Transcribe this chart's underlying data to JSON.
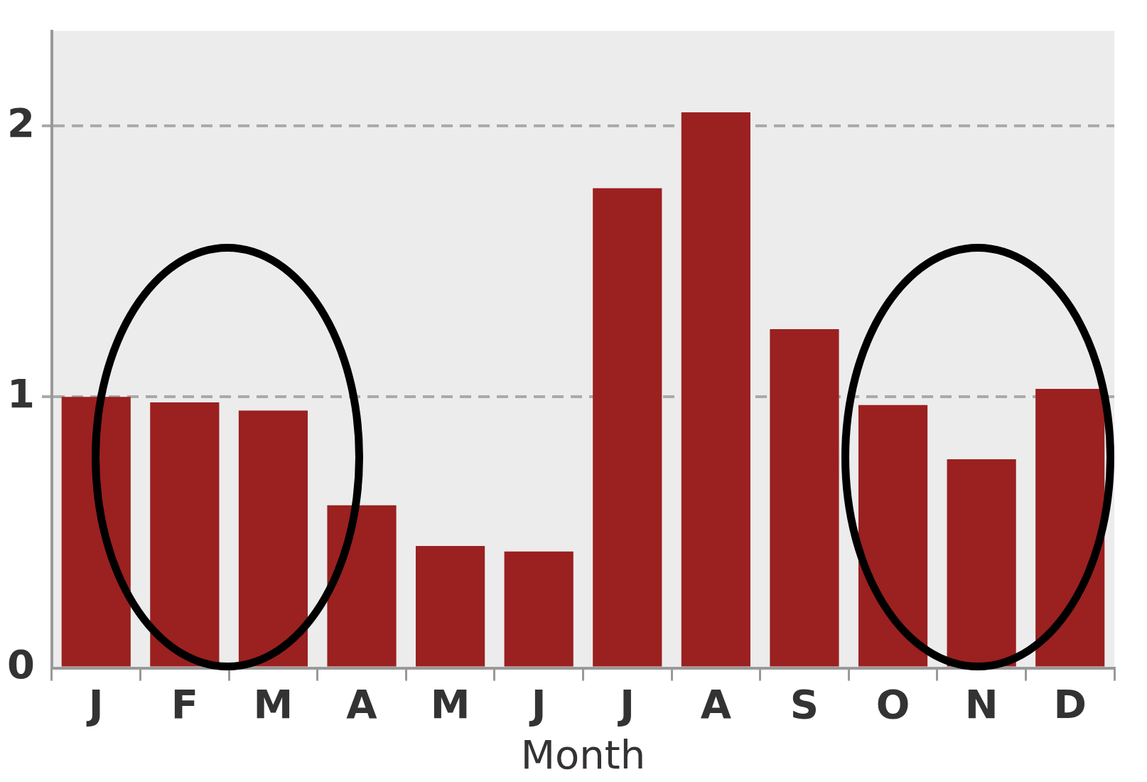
{
  "chart_data": {
    "type": "bar",
    "xlabel": "Month",
    "categories": [
      "J",
      "F",
      "M",
      "A",
      "M",
      "J",
      "J",
      "A",
      "S",
      "O",
      "N",
      "D"
    ],
    "values": [
      1.0,
      0.98,
      0.95,
      0.6,
      0.45,
      0.43,
      1.77,
      2.05,
      1.25,
      0.97,
      0.77,
      1.03
    ],
    "color": "#9b2020",
    "ylim": [
      0,
      2.35
    ],
    "yticks": [
      0,
      1,
      2
    ],
    "grid": "y",
    "legend": false
  }
}
